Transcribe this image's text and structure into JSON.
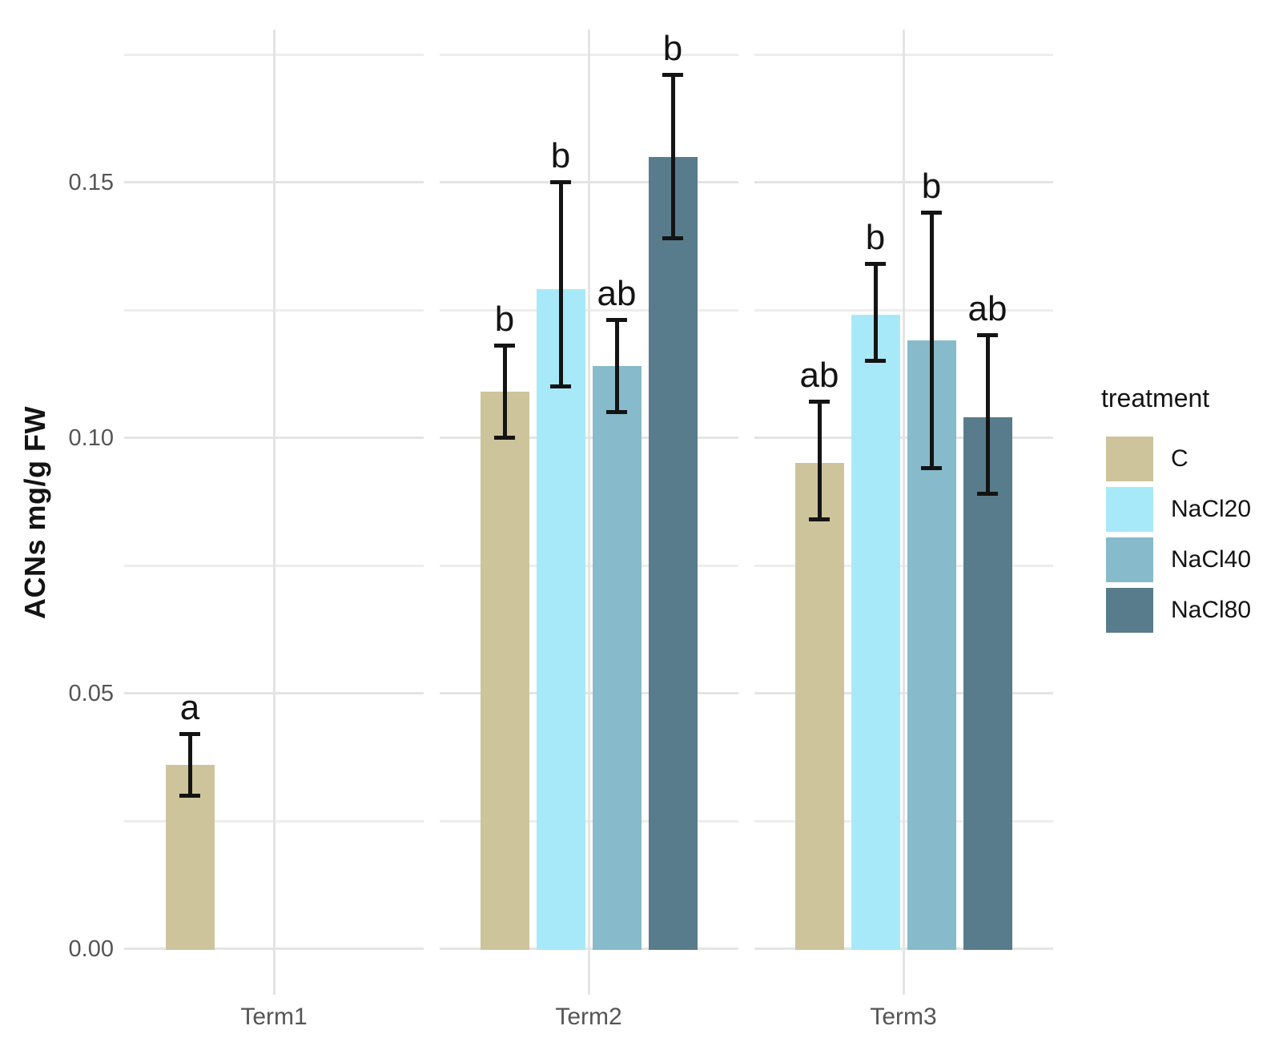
{
  "figure": {
    "background": "#ffffff",
    "grid_major_color": "#e4e4e4",
    "grid_minor_color": "#ededed",
    "axis_text_color": "#555555",
    "annotation_color": "#141414"
  },
  "axes": {
    "y": {
      "title": "ACNs mg/g FW",
      "ticks": [
        {
          "label": "0.00",
          "value": 0.0
        },
        {
          "label": "0.05",
          "value": 0.05
        },
        {
          "label": "0.10",
          "value": 0.1
        },
        {
          "label": "0.15",
          "value": 0.15
        }
      ],
      "minor_ticks": [
        0.025,
        0.075,
        0.125,
        0.175
      ]
    },
    "x": {
      "categories": [
        "Term1",
        "Term2",
        "Term3"
      ]
    }
  },
  "legend": {
    "title": "treatment",
    "position": "right",
    "items": [
      {
        "label": "C",
        "color": "#CDC49B"
      },
      {
        "label": "NaCl20",
        "color": "#A8E9F9"
      },
      {
        "label": "NaCl40",
        "color": "#87BACB"
      },
      {
        "label": "NaCl80",
        "color": "#587C8B"
      }
    ]
  },
  "chart_data": {
    "type": "bar",
    "title": "",
    "xlabel": "",
    "ylabel": "ACNs mg/g FW",
    "ylim": [
      0,
      0.18
    ],
    "grid": true,
    "legend_position": "right",
    "error_bars": true,
    "categories": [
      "Term1",
      "Term2",
      "Term3"
    ],
    "series": [
      {
        "name": "C",
        "color": "#CDC49B",
        "values": [
          0.036,
          0.109,
          0.095
        ],
        "error_low": [
          0.03,
          0.1,
          0.084
        ],
        "error_high": [
          0.042,
          0.118,
          0.107
        ],
        "sig_letters": [
          "a",
          "b",
          "ab"
        ]
      },
      {
        "name": "NaCl20",
        "color": "#A8E9F9",
        "values": [
          null,
          0.129,
          0.124
        ],
        "error_low": [
          null,
          0.11,
          0.115
        ],
        "error_high": [
          null,
          0.15,
          0.134
        ],
        "sig_letters": [
          null,
          "b",
          "b"
        ]
      },
      {
        "name": "NaCl40",
        "color": "#87BACB",
        "values": [
          null,
          0.114,
          0.119
        ],
        "error_low": [
          null,
          0.105,
          0.094
        ],
        "error_high": [
          null,
          0.123,
          0.144
        ],
        "sig_letters": [
          null,
          "ab",
          "b"
        ]
      },
      {
        "name": "NaCl80",
        "color": "#587C8B",
        "values": [
          null,
          0.155,
          0.104
        ],
        "error_low": [
          null,
          0.139,
          0.089
        ],
        "error_high": [
          null,
          0.171,
          0.12
        ],
        "sig_letters": [
          null,
          "b",
          "ab"
        ]
      }
    ]
  }
}
